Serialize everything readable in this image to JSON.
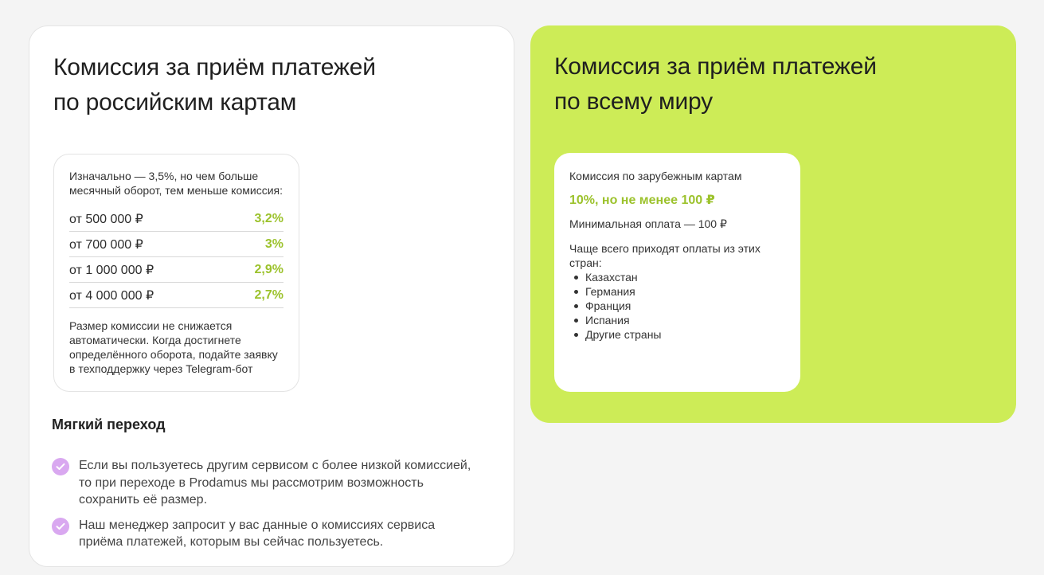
{
  "left_card": {
    "title_line1": "Комиссия за приём платежей",
    "title_line2": "по российским картам",
    "intro": "Изначально — 3,5%, но чем больше месячный оборот, тем меньше комиссия:",
    "rates": [
      {
        "amount": "от 500 000 ₽",
        "percent": "3,2%"
      },
      {
        "amount": "от 700 000 ₽",
        "percent": "3%"
      },
      {
        "amount": "от 1 000 000 ₽",
        "percent": "2,9%"
      },
      {
        "amount": "от 4 000 000 ₽",
        "percent": "2,7%"
      }
    ],
    "note": "Размер комиссии не снижается автоматически. Когда достигнете определённого оборота, подайте заявку в техподдержку через Telegram-бот",
    "soft_title": "Мягкий переход",
    "soft_items": [
      "Если вы пользуетесь другим сервисом с более низкой комиссией, то при переходе в Prodamus мы рассмотрим возможность сохранить её размер.",
      "Наш менеджер запросит у вас данные о комиссиях сервиса приёма платежей, которым вы сейчас пользуетесь."
    ]
  },
  "right_card": {
    "title_line1": "Комиссия за приём платежей",
    "title_line2": "по всему миру",
    "label": "Комиссия по зарубежным картам",
    "rate": "10%, но не менее 100 ₽",
    "minimum": "Минимальная оплата — 100 ₽",
    "often_text": "Чаще всего приходят оплаты из этих стран:",
    "countries": [
      "Казахстан",
      "Германия",
      "Франция",
      "Испания",
      "Другие страны"
    ]
  },
  "colors": {
    "page_bg": "#f4f4f4",
    "accent_green": "#cdec57",
    "percent_green": "#9cc22c",
    "check_purple": "#d9a8f0"
  },
  "icons": {
    "check": "check-circle-icon"
  }
}
